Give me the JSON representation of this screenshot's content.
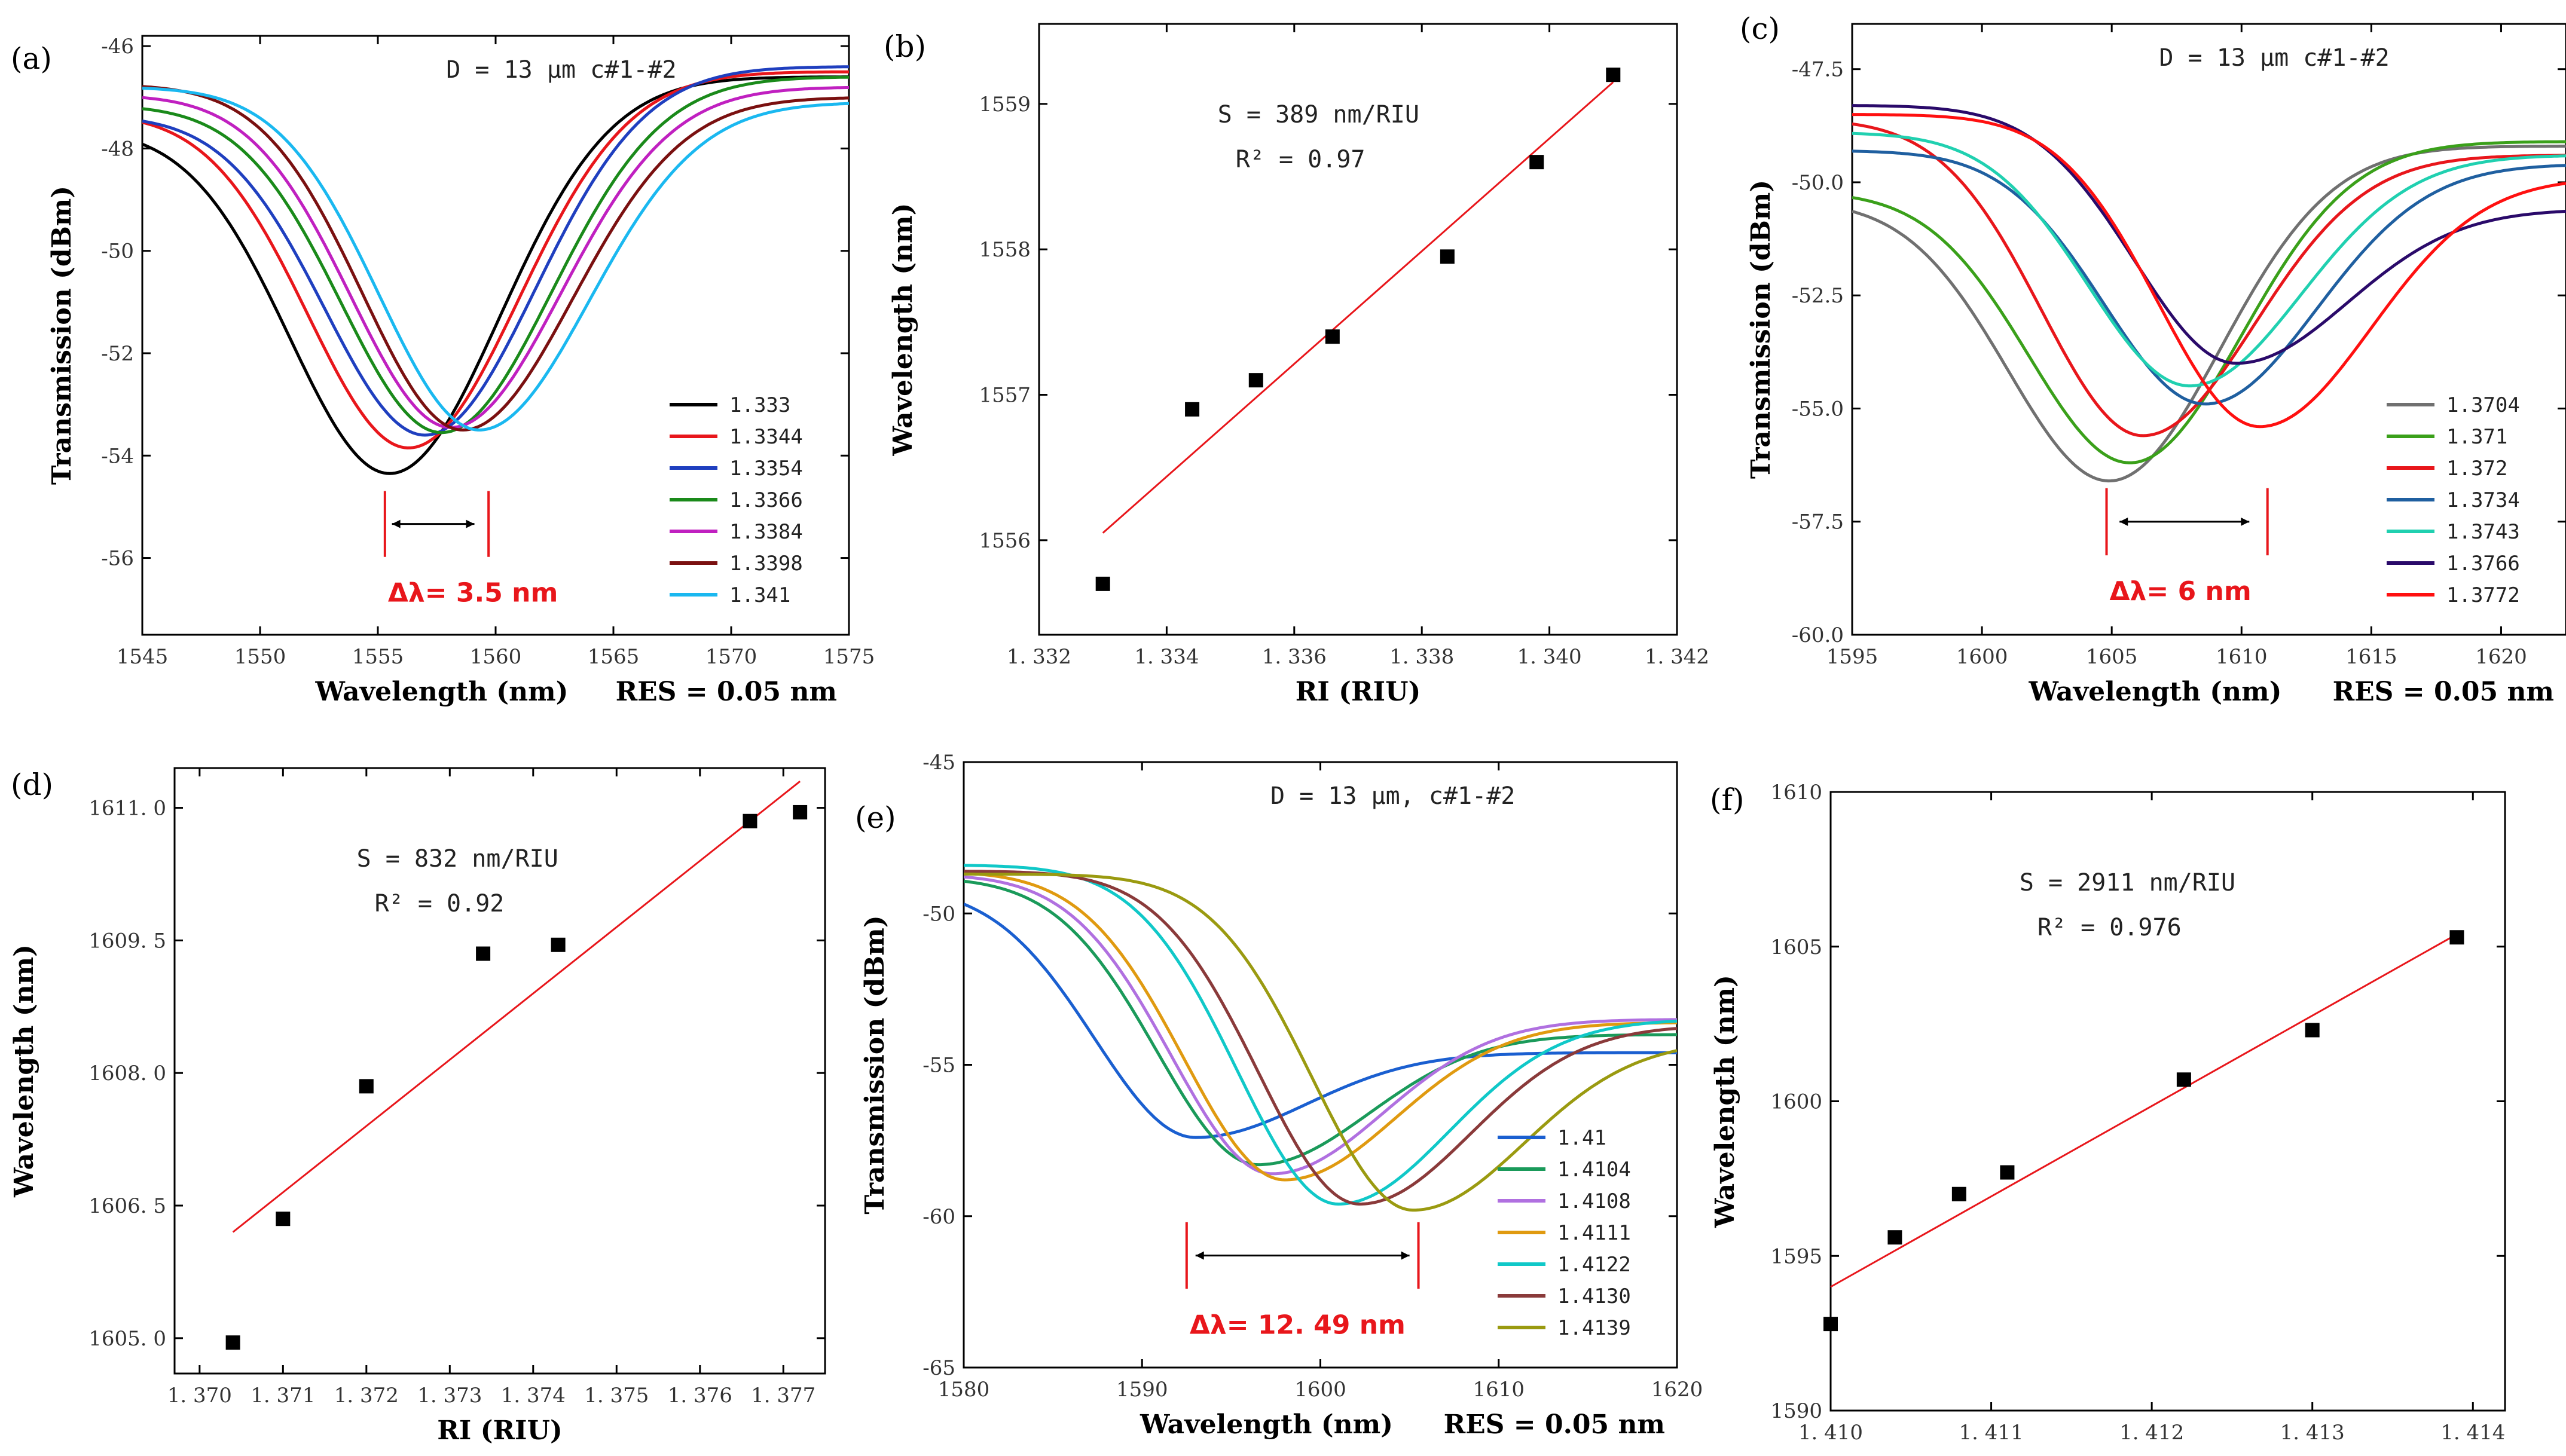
{
  "chart_data": [
    {
      "panel": "(a)",
      "type": "line",
      "xlabel": "Wavelength (nm)",
      "ylabel": "Transmission (dBm)",
      "xlim": [
        1545,
        1575
      ],
      "ylim": [
        -57.5,
        -45.8
      ],
      "xticks": [
        1545,
        1550,
        1555,
        1560,
        1565,
        1570,
        1575
      ],
      "xticklabels": [
        "1545",
        "1550",
        "1555",
        "1560",
        "1565",
        "1570",
        "1575"
      ],
      "yticks": [
        -46,
        -48,
        -50,
        -52,
        -54,
        -56
      ],
      "yticklabels": [
        "-46",
        "-48",
        "-50",
        "-52",
        "-54",
        "-56"
      ],
      "annotation": "D = 13 μm  c#1-#2",
      "res_text": "RES = 0.05 nm",
      "delta_text": "Δλ= 3.5 nm",
      "delta_markers": [
        1555.3,
        1559.7
      ],
      "arrow_range": [
        1555.6,
        1559.1
      ],
      "series": [
        {
          "name": "1.333",
          "color": "#000000",
          "start": -47.6,
          "dip": 1555.5,
          "depth": -54.35,
          "end": -46.6,
          "tilt": 0.0
        },
        {
          "name": "1.3344",
          "color": "#e8161b",
          "start": -47.3,
          "dip": 1556.3,
          "depth": -53.85,
          "end": -46.5,
          "tilt": 0.0
        },
        {
          "name": "1.3354",
          "color": "#1f3fbf",
          "start": -47.35,
          "dip": 1557.0,
          "depth": -53.6,
          "end": -46.4,
          "tilt": 0.0
        },
        {
          "name": "1.3366",
          "color": "#1a8a1a",
          "start": -47.15,
          "dip": 1557.7,
          "depth": -53.55,
          "end": -46.6,
          "tilt": 0.0
        },
        {
          "name": "1.3384",
          "color": "#c020c0",
          "start": -46.95,
          "dip": 1558.1,
          "depth": -53.45,
          "end": -46.8,
          "tilt": 0.0
        },
        {
          "name": "1.3398",
          "color": "#7a1010",
          "start": -46.75,
          "dip": 1558.6,
          "depth": -53.5,
          "end": -47.0,
          "tilt": 0.0
        },
        {
          "name": "1.341",
          "color": "#1ab8f0",
          "start": -46.8,
          "dip": 1559.3,
          "depth": -53.5,
          "end": -47.1,
          "tilt": 0.0
        }
      ]
    },
    {
      "panel": "(b)",
      "type": "scatter",
      "xlabel": "RI (RIU)",
      "ylabel": "Wavelength (nm)",
      "xlim": [
        1.332,
        1.342
      ],
      "ylim": [
        1555.35,
        1559.55
      ],
      "xticks": [
        1.332,
        1.334,
        1.336,
        1.338,
        1.34,
        1.342
      ],
      "xticklabels": [
        "1. 332",
        "1. 334",
        "1. 336",
        "1. 338",
        "1. 340",
        "1. 342"
      ],
      "yticks": [
        1556,
        1557,
        1558,
        1559
      ],
      "yticklabels": [
        "1556",
        "1557",
        "1558",
        "1559"
      ],
      "sensitivity_text": "S = 389 nm/RIU",
      "r2_text": "R² = 0.97",
      "points": [
        [
          1.333,
          1555.7
        ],
        [
          1.3344,
          1556.9
        ],
        [
          1.3354,
          1557.1
        ],
        [
          1.3366,
          1557.4
        ],
        [
          1.3384,
          1557.95
        ],
        [
          1.3398,
          1558.6
        ],
        [
          1.341,
          1559.2
        ]
      ],
      "fit": [
        [
          1.333,
          1556.05
        ],
        [
          1.341,
          1559.15
        ]
      ]
    },
    {
      "panel": "(c)",
      "type": "line",
      "xlabel": "Wavelength (nm)",
      "ylabel": "Transmission (dBm)",
      "xlim": [
        1595,
        1622.5
      ],
      "ylim": [
        -60,
        -46.5
      ],
      "xticks": [
        1595,
        1600,
        1605,
        1610,
        1615,
        1620
      ],
      "xticklabels": [
        "1595",
        "1600",
        "1605",
        "1610",
        "1615",
        "1620"
      ],
      "yticks": [
        -47.5,
        -50.0,
        -52.5,
        -55.0,
        -57.5,
        -60.0
      ],
      "yticklabels": [
        "-47.5",
        "-50.0",
        "-52.5",
        "-55.0",
        "-57.5",
        "-60.0"
      ],
      "annotation": "D = 13 μm  c#1-#2",
      "res_text": "RES = 0.05 nm",
      "delta_text": "Δλ= 6 nm",
      "delta_markers": [
        1604.8,
        1611.0
      ],
      "arrow_range": [
        1605.3,
        1610.3
      ],
      "series": [
        {
          "name": "1.3704",
          "color": "#707070",
          "start": -50.4,
          "dip": 1604.9,
          "depth": -56.6,
          "end": -49.2,
          "tilt": 0.0
        },
        {
          "name": "1.371",
          "color": "#3aa01a",
          "start": -50.2,
          "dip": 1605.7,
          "depth": -56.2,
          "end": -49.1,
          "tilt": 0.0
        },
        {
          "name": "1.372",
          "color": "#e8161b",
          "start": -48.6,
          "dip": 1606.2,
          "depth": -55.6,
          "end": -49.4,
          "tilt": 0.0
        },
        {
          "name": "1.3734",
          "color": "#1f5fa0",
          "start": -49.3,
          "dip": 1608.6,
          "depth": -54.9,
          "end": -49.6,
          "tilt": 0.0
        },
        {
          "name": "1.3743",
          "color": "#20d0b0",
          "start": -48.9,
          "dip": 1608.0,
          "depth": -54.5,
          "end": -49.4,
          "tilt": 0.0
        },
        {
          "name": "1.3766",
          "color": "#2a0a6a",
          "start": -48.3,
          "dip": 1609.8,
          "depth": -54.0,
          "end": -50.6,
          "tilt": 0.0
        },
        {
          "name": "1.3772",
          "color": "#ff1010",
          "start": -48.5,
          "dip": 1610.7,
          "depth": -55.4,
          "end": -49.9,
          "tilt": 0.0
        }
      ]
    },
    {
      "panel": "(d)",
      "type": "scatter",
      "xlabel": "RI (RIU)",
      "ylabel": "Wavelength (nm)",
      "xlim": [
        1.3697,
        1.3775
      ],
      "ylim": [
        1604.6,
        1611.45
      ],
      "xticks": [
        1.37,
        1.371,
        1.372,
        1.373,
        1.374,
        1.375,
        1.376,
        1.377
      ],
      "xticklabels": [
        "1. 370",
        "1. 371",
        "1. 372",
        "1. 373",
        "1. 374",
        "1. 375",
        "1. 376",
        "1. 377"
      ],
      "yticks": [
        1605.0,
        1606.5,
        1608.0,
        1609.5,
        1611.0
      ],
      "yticklabels": [
        "1605. 0",
        "1606. 5",
        "1608. 0",
        "1609. 5",
        "1611. 0"
      ],
      "sensitivity_text": "S = 832 nm/RIU",
      "r2_text": "R² = 0.92",
      "points": [
        [
          1.3704,
          1604.95
        ],
        [
          1.371,
          1606.35
        ],
        [
          1.372,
          1607.85
        ],
        [
          1.3734,
          1609.35
        ],
        [
          1.3743,
          1609.45
        ],
        [
          1.3766,
          1610.85
        ],
        [
          1.3772,
          1610.95
        ]
      ],
      "fit": [
        [
          1.3704,
          1606.2
        ],
        [
          1.3772,
          1611.3
        ]
      ]
    },
    {
      "panel": "(e)",
      "type": "line",
      "xlabel": "Wavelength (nm)",
      "ylabel": "Transmission (dBm)",
      "xlim": [
        1580,
        1620
      ],
      "ylim": [
        -65,
        -45
      ],
      "xticks": [
        1580,
        1590,
        1600,
        1610,
        1620
      ],
      "xticklabels": [
        "1580",
        "1590",
        "1600",
        "1610",
        "1620"
      ],
      "yticks": [
        -45,
        -50,
        -55,
        -60,
        -65
      ],
      "yticklabels": [
        "-45",
        "-50",
        "-55",
        "-60",
        "-65"
      ],
      "annotation": "D = 13 μm, c#1-#2",
      "res_text": "RES = 0.05 nm",
      "delta_text": "Δλ= 12. 49 nm",
      "delta_markers": [
        1592.5,
        1605.5
      ],
      "arrow_range": [
        1593.0,
        1605.0
      ],
      "series": [
        {
          "name": "1.41",
          "color": "#1a5fd0",
          "start": -49.1,
          "dip": 1593.0,
          "depth": -57.4,
          "end": -54.6,
          "tilt": 0.0
        },
        {
          "name": "1.4104",
          "color": "#1a9a5a",
          "start": -48.8,
          "dip": 1596.5,
          "depth": -58.3,
          "end": -54.0,
          "tilt": 0.0
        },
        {
          "name": "1.4108",
          "color": "#b070e0",
          "start": -48.7,
          "dip": 1597.3,
          "depth": -58.6,
          "end": -53.5,
          "tilt": 0.0
        },
        {
          "name": "1.4111",
          "color": "#e09a10",
          "start": -48.6,
          "dip": 1598.0,
          "depth": -58.8,
          "end": -53.6,
          "tilt": 0.0
        },
        {
          "name": "1.4122",
          "color": "#10c8c8",
          "start": -48.4,
          "dip": 1601.0,
          "depth": -59.6,
          "end": -53.5,
          "tilt": 0.0
        },
        {
          "name": "1.4130",
          "color": "#8a3a3a",
          "start": -48.6,
          "dip": 1602.2,
          "depth": -59.6,
          "end": -53.7,
          "tilt": 0.0
        },
        {
          "name": "1.4139",
          "color": "#9a9a10",
          "start": -48.7,
          "dip": 1605.2,
          "depth": -59.8,
          "end": -54.2,
          "tilt": 0.0
        }
      ]
    },
    {
      "panel": "(f)",
      "type": "scatter",
      "xlabel": "RI (RIU)",
      "ylabel": "Wavelength (nm)",
      "xlim": [
        1.41,
        1.4142
      ],
      "ylim": [
        1590,
        1610
      ],
      "xticks": [
        1.41,
        1.411,
        1.412,
        1.413,
        1.414
      ],
      "xticklabels": [
        "1. 410",
        "1. 411",
        "1. 412",
        "1. 413",
        "1. 414"
      ],
      "yticks": [
        1590,
        1595,
        1600,
        1605,
        1610
      ],
      "yticklabels": [
        "1590",
        "1595",
        "1600",
        "1605",
        "1610"
      ],
      "sensitivity_text": "S = 2911 nm/RIU",
      "r2_text": "R² = 0.976",
      "points": [
        [
          1.41,
          1592.8
        ],
        [
          1.4104,
          1595.6
        ],
        [
          1.4108,
          1597.0
        ],
        [
          1.4111,
          1597.7
        ],
        [
          1.4122,
          1600.7
        ],
        [
          1.413,
          1602.3
        ],
        [
          1.4139,
          1605.3
        ]
      ],
      "fit": [
        [
          1.41,
          1594.0
        ],
        [
          1.4139,
          1605.4
        ]
      ]
    }
  ]
}
